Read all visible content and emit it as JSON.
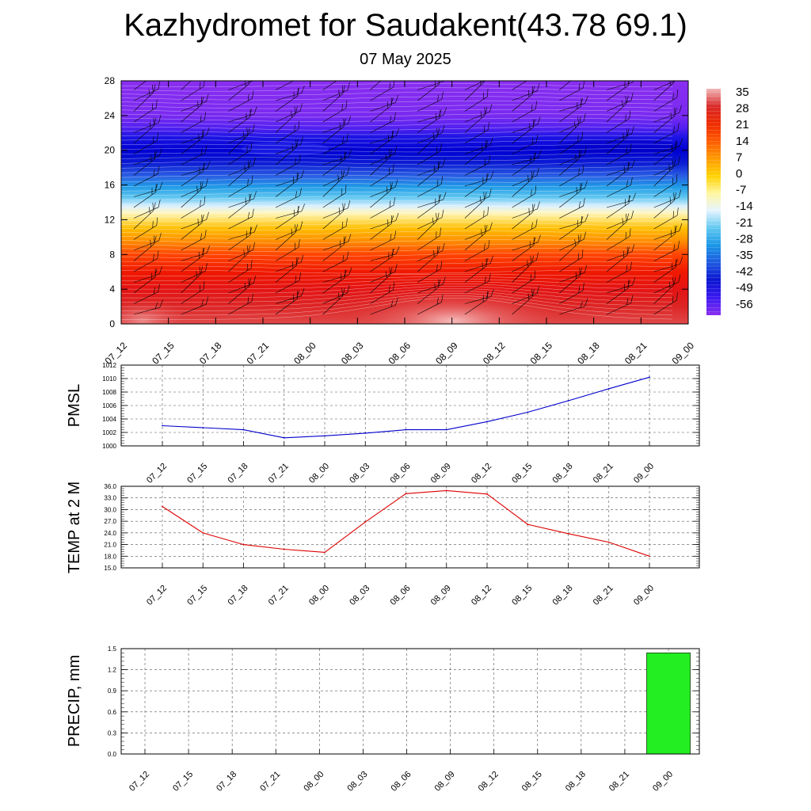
{
  "header": {
    "title": "Kazhydromet for Saudakent(43.78 69.1)",
    "subtitle": "07 May 2025"
  },
  "chart_data": [
    {
      "type": "heatmap",
      "name": "temperature-cross-section",
      "yticks": [
        "0",
        "4",
        "8",
        "12",
        "16",
        "20",
        "24",
        "28"
      ],
      "ylim": [
        0,
        28
      ],
      "x_categories": [
        "07_12",
        "07_15",
        "07_18",
        "07_21",
        "08_00",
        "08_03",
        "08_06",
        "08_09",
        "08_12",
        "08_15",
        "08_18",
        "08_21",
        "09_00"
      ],
      "colorbar_labels": [
        "35",
        "28",
        "21",
        "14",
        "7",
        "0",
        "-7",
        "-14",
        "-21",
        "-28",
        "-35",
        "-42",
        "-49",
        "-56"
      ],
      "colorbar_colors": [
        "#f3b8b8",
        "#d92a2a",
        "#ee2a00",
        "#ff5a00",
        "#ff9a00",
        "#ffd200",
        "#fff6a0",
        "#e6f4ff",
        "#60c8f0",
        "#1a96e6",
        "#1e58e0",
        "#0a14d0",
        "#3c1af0",
        "#8a2ef0"
      ],
      "bands": [
        {
          "z": 0,
          "color": "#e04848"
        },
        {
          "z": 2,
          "color": "#dd2525"
        },
        {
          "z": 4,
          "color": "#e41414"
        },
        {
          "z": 6,
          "color": "#f01800"
        },
        {
          "z": 8,
          "color": "#ff4400"
        },
        {
          "z": 9.5,
          "color": "#ff8c00"
        },
        {
          "z": 11,
          "color": "#ffbe00"
        },
        {
          "z": 12,
          "color": "#ffe066"
        },
        {
          "z": 12.8,
          "color": "#fff6c0"
        },
        {
          "z": 13.6,
          "color": "#d8efff"
        },
        {
          "z": 14.6,
          "color": "#5fc6f0"
        },
        {
          "z": 15.8,
          "color": "#1f9ae6"
        },
        {
          "z": 17,
          "color": "#2a60e4"
        },
        {
          "z": 18.5,
          "color": "#0c1cd4"
        },
        {
          "z": 20,
          "color": "#0000d2"
        },
        {
          "z": 21.5,
          "color": "#1c14e4"
        },
        {
          "z": 22.5,
          "color": "#5020f0"
        },
        {
          "z": 24,
          "color": "#7a2af0"
        },
        {
          "z": 28,
          "color": "#8a2ef0"
        }
      ]
    },
    {
      "type": "line",
      "name": "pmsl",
      "ylabel": "PMSL",
      "ylim": [
        1000,
        1012
      ],
      "yticks": [
        "1000",
        "1002",
        "1004",
        "1006",
        "1008",
        "1010",
        "1012"
      ],
      "categories": [
        "07_12",
        "07_15",
        "07_18",
        "07_21",
        "08_00",
        "08_03",
        "08_06",
        "08_09",
        "08_12",
        "08_15",
        "08_18",
        "08_21",
        "09_00"
      ],
      "values": [
        1003.0,
        1002.7,
        1002.4,
        1001.2,
        1001.5,
        1001.9,
        1002.4,
        1002.4,
        1003.6,
        1005.0,
        1006.7,
        1008.5,
        1010.2
      ],
      "color": "#0000cc"
    },
    {
      "type": "line",
      "name": "temp-2m",
      "ylabel": "TEMP at 2 M",
      "ylim": [
        15,
        36
      ],
      "yticks": [
        "15.0",
        "18.0",
        "21.0",
        "24.0",
        "27.0",
        "30.0",
        "33.0",
        "36.0"
      ],
      "categories": [
        "07_12",
        "07_15",
        "07_18",
        "07_21",
        "08_00",
        "08_03",
        "08_06",
        "08_09",
        "08_12",
        "08_15",
        "08_18",
        "08_21",
        "09_00"
      ],
      "values": [
        30.8,
        24.0,
        21.0,
        19.8,
        19.0,
        26.8,
        34.1,
        34.9,
        34.0,
        26.2,
        23.8,
        21.6,
        18.0
      ],
      "color": "#dd0000"
    },
    {
      "type": "bar",
      "name": "precip",
      "ylabel": "PRECIP, mm",
      "ylim": [
        0,
        1.5
      ],
      "yticks": [
        "0.0",
        "0.3",
        "0.6",
        "0.9",
        "1.2",
        "1.5"
      ],
      "categories": [
        "07_12",
        "07_15",
        "07_18",
        "07_21",
        "08_00",
        "08_03",
        "08_06",
        "08_09",
        "08_12",
        "08_15",
        "08_18",
        "08_21",
        "09_00"
      ],
      "values": [
        0,
        0,
        0,
        0,
        0,
        0,
        0,
        0,
        0,
        0,
        0,
        0,
        1.44
      ],
      "color": "#22ee22"
    }
  ]
}
